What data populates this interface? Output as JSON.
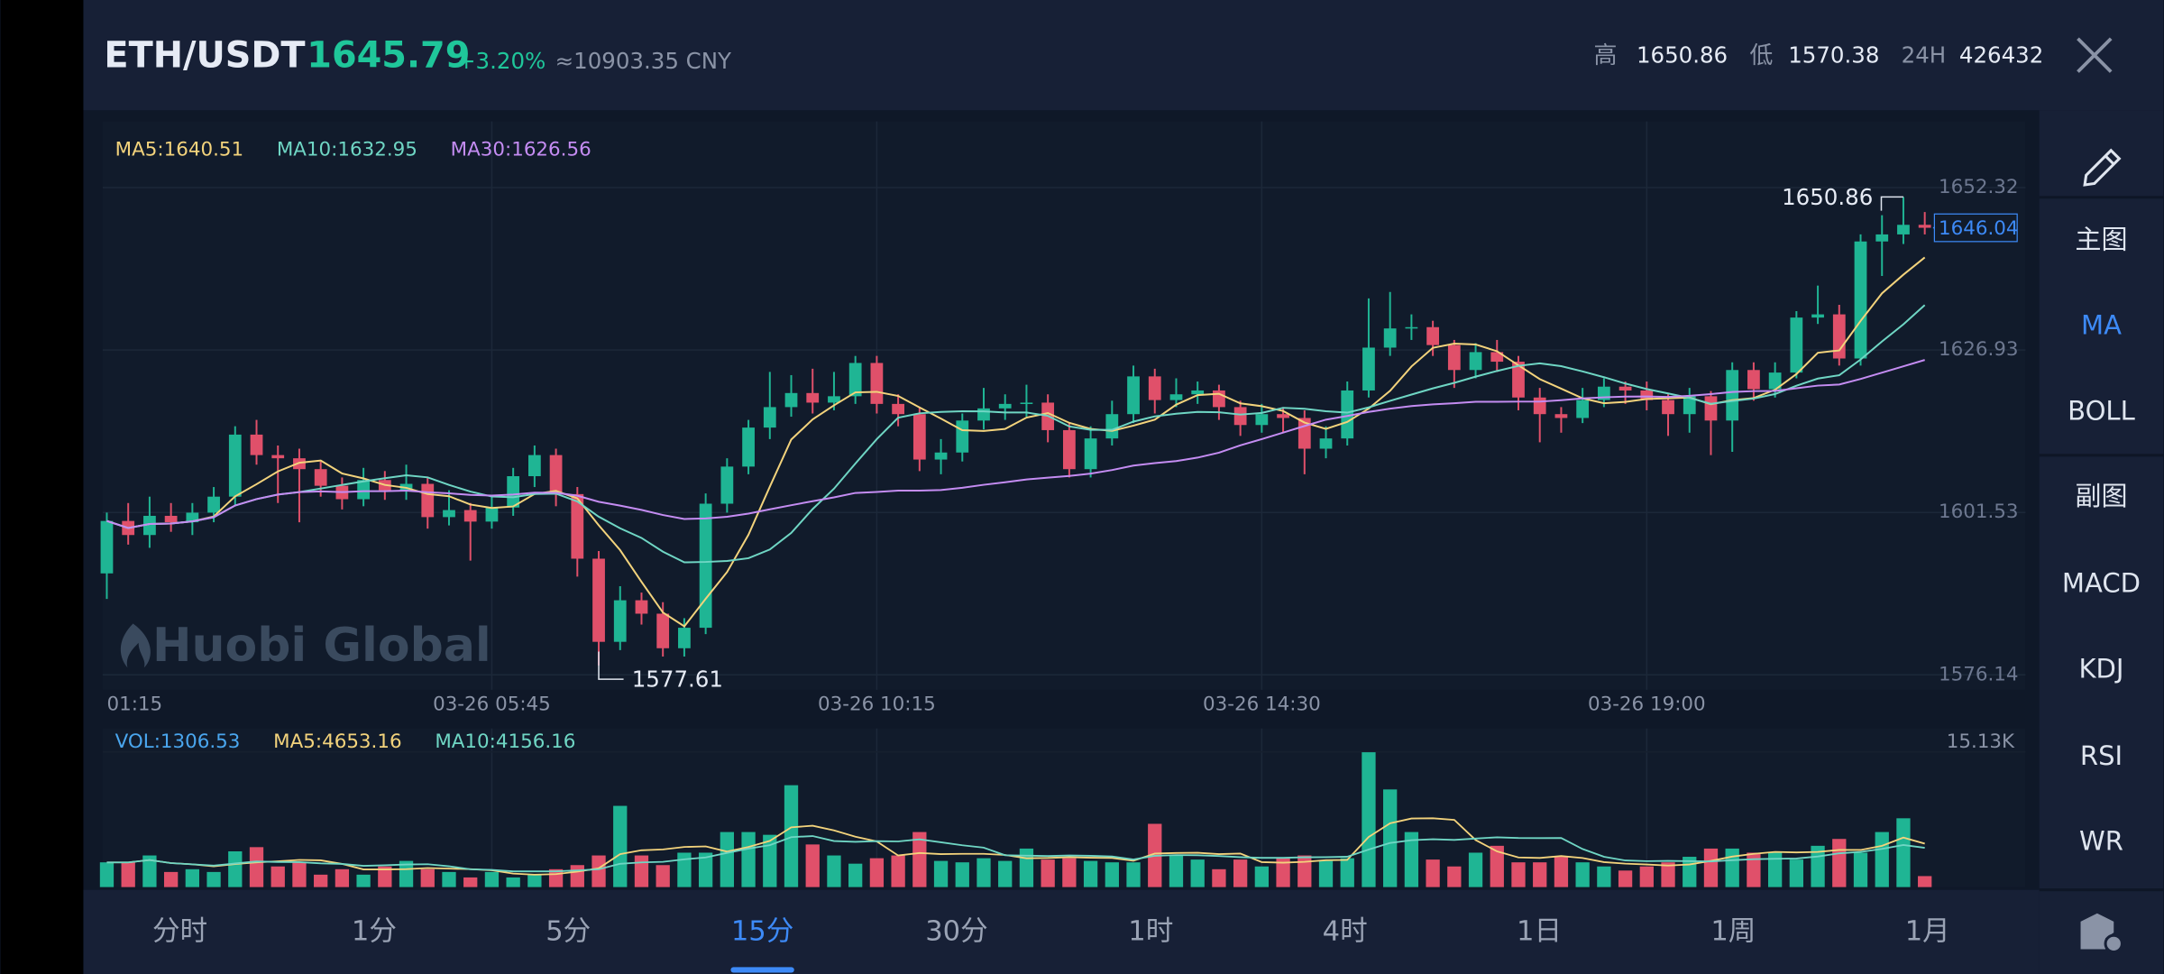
{
  "header": {
    "pair": "ETH/USDT",
    "price": "1645.79",
    "change": "+3.20%",
    "cny": "≈10903.35 CNY",
    "high_label": "高",
    "high": "1650.86",
    "low_label": "低",
    "low": "1570.38",
    "vol_label": "24H",
    "vol": "426432"
  },
  "chart_data": {
    "type": "candlestick",
    "categories": [
      "01:15",
      null,
      null,
      null,
      null,
      null,
      null,
      null,
      null,
      null,
      null,
      null,
      null,
      null,
      null,
      null,
      null,
      null,
      "03-26 05:45",
      null,
      null,
      null,
      null,
      null,
      null,
      null,
      null,
      null,
      null,
      null,
      null,
      null,
      null,
      null,
      null,
      null,
      "03-26 10:15",
      null,
      null,
      null,
      null,
      null,
      null,
      null,
      null,
      null,
      null,
      null,
      null,
      null,
      null,
      null,
      null,
      null,
      "03-26 14:30",
      null,
      null,
      null,
      null,
      null,
      null,
      null,
      null,
      null,
      null,
      null,
      null,
      null,
      null,
      null,
      null,
      null,
      "03-26 19:00",
      null,
      null,
      null,
      null,
      null,
      null,
      null,
      null,
      null,
      null,
      null,
      null,
      null
    ],
    "candles": [
      [
        1592,
        1601.5,
        1588,
        1600.2
      ],
      [
        1600.2,
        1603,
        1596.5,
        1598
      ],
      [
        1598,
        1604,
        1596,
        1601
      ],
      [
        1601,
        1603,
        1598.5,
        1600
      ],
      [
        1600,
        1603,
        1598,
        1601.5
      ],
      [
        1601.5,
        1605.5,
        1600,
        1604
      ],
      [
        1604,
        1615,
        1602.5,
        1613.7
      ],
      [
        1613.7,
        1616,
        1609,
        1610.5
      ],
      [
        1610.5,
        1612,
        1603,
        1610
      ],
      [
        1610,
        1611.5,
        1600,
        1608.3
      ],
      [
        1608.3,
        1609.5,
        1604,
        1605.7
      ],
      [
        1605.7,
        1607,
        1602,
        1603.6
      ],
      [
        1603.6,
        1608.5,
        1602.5,
        1606.6
      ],
      [
        1606.6,
        1608,
        1603.5,
        1605
      ],
      [
        1605,
        1609,
        1603.5,
        1606
      ],
      [
        1606,
        1607,
        1599,
        1600.8
      ],
      [
        1600.8,
        1605,
        1599.5,
        1601.9
      ],
      [
        1601.9,
        1603,
        1594,
        1600.1
      ],
      [
        1600.1,
        1604,
        1599,
        1602.3
      ],
      [
        1602.3,
        1608.5,
        1601,
        1607.2
      ],
      [
        1607.2,
        1612,
        1605.5,
        1610.5
      ],
      [
        1610.5,
        1611.5,
        1602.5,
        1604.4
      ],
      [
        1604.4,
        1605.5,
        1591.5,
        1594.3
      ],
      [
        1594.3,
        1595.5,
        1577.61,
        1581.3
      ],
      [
        1581.3,
        1590,
        1580,
        1587.8
      ],
      [
        1587.8,
        1589,
        1584,
        1585.7
      ],
      [
        1585.7,
        1587.5,
        1579,
        1580.3
      ],
      [
        1580.3,
        1585,
        1579,
        1583.5
      ],
      [
        1583.5,
        1604.5,
        1582.5,
        1602.9
      ],
      [
        1602.9,
        1610,
        1601.5,
        1608.7
      ],
      [
        1608.7,
        1616,
        1607.5,
        1614.8
      ],
      [
        1614.8,
        1623.5,
        1613,
        1618
      ],
      [
        1618,
        1623,
        1616.5,
        1620.2
      ],
      [
        1620.2,
        1624,
        1617,
        1618.7
      ],
      [
        1618.7,
        1623.5,
        1617.5,
        1619.7
      ],
      [
        1619.7,
        1626,
        1618.5,
        1624.9
      ],
      [
        1624.9,
        1626,
        1617,
        1618.5
      ],
      [
        1618.5,
        1620,
        1615,
        1616.9
      ],
      [
        1616.9,
        1618,
        1608,
        1609.8
      ],
      [
        1609.8,
        1613,
        1607.5,
        1610.9
      ],
      [
        1610.9,
        1617,
        1609.5,
        1615.9
      ],
      [
        1615.9,
        1621,
        1614.5,
        1617.8
      ],
      [
        1617.8,
        1620,
        1616,
        1618.5
      ],
      [
        1618.5,
        1621.5,
        1616.5,
        1618.7
      ],
      [
        1618.7,
        1620,
        1612.5,
        1614.4
      ],
      [
        1614.4,
        1615.5,
        1607,
        1608.3
      ],
      [
        1608.3,
        1615,
        1607,
        1613.1
      ],
      [
        1613.1,
        1619,
        1612,
        1616.9
      ],
      [
        1616.9,
        1624.5,
        1615.5,
        1622.8
      ],
      [
        1622.8,
        1624,
        1617,
        1619.1
      ],
      [
        1619.1,
        1622.5,
        1618,
        1620
      ],
      [
        1620,
        1622,
        1618.5,
        1620.6
      ],
      [
        1620.6,
        1621.5,
        1616,
        1618
      ],
      [
        1618,
        1619,
        1613.5,
        1615.2
      ],
      [
        1615.2,
        1618.5,
        1614,
        1616.9
      ],
      [
        1616.9,
        1618,
        1614,
        1616.3
      ],
      [
        1616.3,
        1617.5,
        1607.5,
        1611.5
      ],
      [
        1611.5,
        1615,
        1610,
        1613.1
      ],
      [
        1613.1,
        1622,
        1612,
        1620.6
      ],
      [
        1620.6,
        1635,
        1619.5,
        1627.3
      ],
      [
        1627.3,
        1636,
        1626,
        1630.3
      ],
      [
        1630.3,
        1632.5,
        1628.5,
        1630.5
      ],
      [
        1630.5,
        1631.5,
        1626,
        1627.7
      ],
      [
        1627.7,
        1628.5,
        1621,
        1623.8
      ],
      [
        1623.8,
        1628,
        1622.5,
        1626.6
      ],
      [
        1626.6,
        1628.5,
        1623.5,
        1625.1
      ],
      [
        1625.1,
        1626,
        1617.5,
        1619.5
      ],
      [
        1619.5,
        1621,
        1612.5,
        1616.9
      ],
      [
        1616.9,
        1618,
        1614,
        1616.3
      ],
      [
        1616.3,
        1621,
        1615.5,
        1619.1
      ],
      [
        1619.1,
        1622.5,
        1618,
        1621.2
      ],
      [
        1621.2,
        1622,
        1618.5,
        1620.6
      ],
      [
        1620.6,
        1622,
        1617.5,
        1619.1
      ],
      [
        1619.1,
        1620,
        1613.5,
        1616.9
      ],
      [
        1616.9,
        1621,
        1614,
        1619.7
      ],
      [
        1619.7,
        1620.5,
        1610.5,
        1615.9
      ],
      [
        1615.9,
        1625,
        1611,
        1623.8
      ],
      [
        1623.8,
        1625,
        1619,
        1620.8
      ],
      [
        1620.8,
        1625,
        1619.5,
        1623.4
      ],
      [
        1623.4,
        1633,
        1622.5,
        1632
      ],
      [
        1632,
        1637,
        1631,
        1632.5
      ],
      [
        1632.5,
        1634,
        1624.5,
        1625.6
      ],
      [
        1625.6,
        1645,
        1624.5,
        1643.9
      ],
      [
        1643.9,
        1648,
        1638.5,
        1645
      ],
      [
        1645,
        1650.86,
        1643.5,
        1646.5
      ],
      [
        1646.5,
        1648.5,
        1645,
        1646.04
      ]
    ],
    "up_color": "#1fb594",
    "down_color": "#e0506a",
    "ylim": [
      1573.8,
      1662.67
    ],
    "yticks": [
      1652.32,
      1626.93,
      1601.53,
      1576.14
    ],
    "last_price": 1646.04,
    "max_label": 1650.86,
    "min_label": 1577.61,
    "legend": [
      {
        "label": "MA5:1640.51",
        "color": "#f3d37c"
      },
      {
        "label": "MA10:1632.95",
        "color": "#6fd6c4"
      },
      {
        "label": "MA30:1626.56",
        "color": "#c48cf2"
      }
    ],
    "watermark": "Huobi Global",
    "volume": {
      "values": [
        2770,
        2770,
        3540,
        1690,
        2000,
        1690,
        4000,
        4470,
        2310,
        2770,
        1390,
        2000,
        1390,
        2310,
        2930,
        2000,
        1690,
        1080,
        1690,
        1080,
        1390,
        2000,
        2460,
        3540,
        9090,
        3540,
        2460,
        3850,
        3850,
        6160,
        6160,
        5850,
        11400,
        4770,
        3540,
        2620,
        3230,
        3540,
        6160,
        2930,
        2770,
        3230,
        2930,
        4310,
        3080,
        3230,
        2930,
        2770,
        2770,
        7080,
        3540,
        3080,
        2000,
        3080,
        2310,
        3230,
        3540,
        2930,
        3230,
        15090,
        10930,
        6160,
        3080,
        2310,
        3850,
        4620,
        2770,
        2770,
        3390,
        2770,
        2310,
        1850,
        2310,
        2770,
        3390,
        4310,
        4310,
        3850,
        3850,
        3080,
        4620,
        5390,
        3850,
        6160,
        7700,
        1230
      ],
      "ylim": [
        0,
        15130
      ],
      "yticks": [
        {
          "value": 15130,
          "label": "15.13K"
        }
      ],
      "legend": [
        {
          "label": "VOL:1306.53",
          "color": "#4aa6ee"
        },
        {
          "label": "MA5:4653.16",
          "color": "#f3d37c"
        },
        {
          "label": "MA10:4156.16",
          "color": "#6fd6c4"
        }
      ]
    }
  },
  "sidebar": [
    {
      "label": "主图",
      "active": false
    },
    {
      "label": "MA",
      "active": true
    },
    {
      "label": "BOLL",
      "active": false
    },
    {
      "label": "副图",
      "active": false
    },
    {
      "label": "MACD",
      "active": false
    },
    {
      "label": "KDJ",
      "active": false
    },
    {
      "label": "RSI",
      "active": false
    },
    {
      "label": "WR",
      "active": false
    }
  ],
  "tabs": [
    {
      "label": "分时",
      "active": false
    },
    {
      "label": "1分",
      "active": false
    },
    {
      "label": "5分",
      "active": false
    },
    {
      "label": "15分",
      "active": true
    },
    {
      "label": "30分",
      "active": false
    },
    {
      "label": "1时",
      "active": false
    },
    {
      "label": "4时",
      "active": false
    },
    {
      "label": "1日",
      "active": false
    },
    {
      "label": "1周",
      "active": false
    },
    {
      "label": "1月",
      "active": false
    }
  ]
}
